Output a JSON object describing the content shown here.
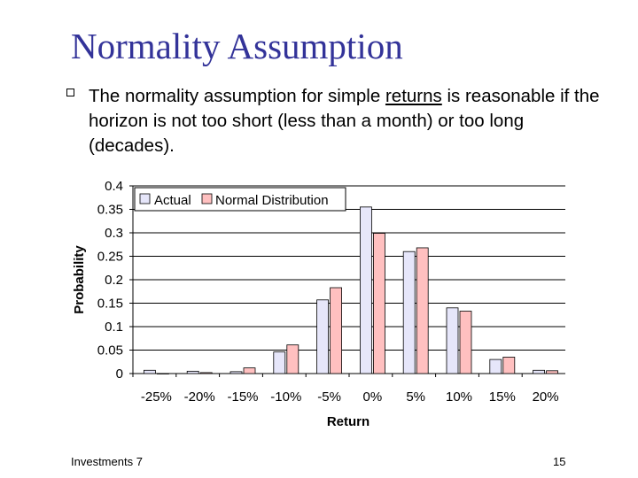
{
  "slide": {
    "title": "Normality Assumption",
    "bullet_prefix": "The normality assumption for simple ",
    "bullet_underlined": "returns",
    "bullet_suffix": " is reasonable if the horizon is not too short (less than a month) or too long (decades).",
    "footer_left": "Investments 7",
    "footer_right": "15"
  },
  "colors": {
    "title": "#333399",
    "actual_fill": "#e6e6fa",
    "normal_fill": "#ffc0c0",
    "bar_stroke": "#000000",
    "grid": "#000000"
  },
  "chart_data": {
    "type": "bar",
    "categories": [
      "-25%",
      "-20%",
      "-15%",
      "-10%",
      "-5%",
      "0%",
      "5%",
      "10%",
      "15%",
      "20%"
    ],
    "series": [
      {
        "name": "Actual",
        "values": [
          0.007,
          0.005,
          0.004,
          0.046,
          0.157,
          0.355,
          0.26,
          0.14,
          0.03,
          0.007
        ]
      },
      {
        "name": "Normal Distribution",
        "values": [
          0.0,
          0.002,
          0.012,
          0.061,
          0.183,
          0.299,
          0.268,
          0.133,
          0.035,
          0.006
        ]
      }
    ],
    "xlabel": "Return",
    "ylabel": "Probability",
    "ylim": [
      0,
      0.4
    ],
    "yticks": [
      "0",
      "0.05",
      "0.1",
      "0.15",
      "0.2",
      "0.25",
      "0.3",
      "0.35",
      "0.4"
    ],
    "grid": true,
    "legend_position": "top-left"
  }
}
